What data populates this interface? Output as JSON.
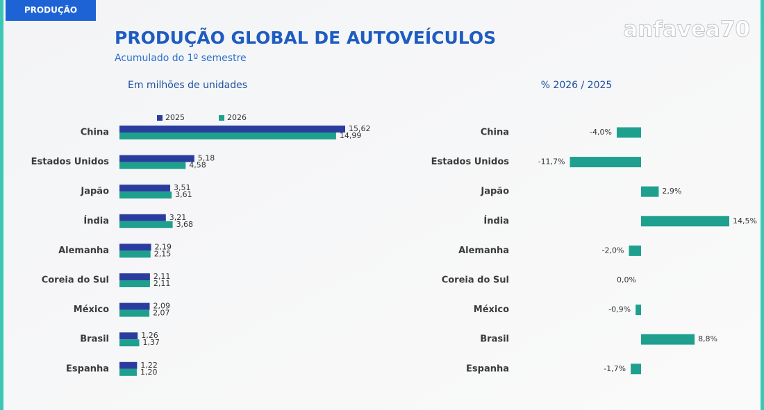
{
  "header": {
    "tag": "PRODUÇÃO",
    "title": "PRODUÇÃO GLOBAL DE AUTOVEÍCULOS",
    "subtitle": "Acumulado do 1º semestre",
    "logo": "anfavea70"
  },
  "chart_data": [
    {
      "type": "bar",
      "orientation": "horizontal",
      "title": "Em milhões de unidades",
      "legend": "top",
      "categories": [
        "China",
        "Estados Unidos",
        "Japão",
        "Índia",
        "Alemanha",
        "Coreia do Sul",
        "México",
        "Brasil",
        "Espanha"
      ],
      "series": [
        {
          "name": "2025",
          "color": "#2a3d9e",
          "values": [
            15.62,
            5.18,
            3.51,
            3.21,
            2.19,
            2.11,
            2.09,
            1.26,
            1.22
          ],
          "value_labels": [
            "15,62",
            "5,18",
            "3,51",
            "3,21",
            "2,19",
            "2,11",
            "2,09",
            "1,26",
            "1,22"
          ]
        },
        {
          "name": "2026",
          "color": "#1fa08e",
          "values": [
            14.99,
            4.58,
            3.61,
            3.68,
            2.15,
            2.11,
            2.07,
            1.37,
            1.2
          ],
          "value_labels": [
            "14,99",
            "4,58",
            "3,61",
            "3,68",
            "2,15",
            "2,11",
            "2,07",
            "1,37",
            "1,20"
          ]
        }
      ]
    },
    {
      "type": "bar",
      "orientation": "horizontal",
      "title": "% 2026 / 2025",
      "color": "#1fa08e",
      "categories": [
        "China",
        "Estados Unidos",
        "Japão",
        "Índia",
        "Alemanha",
        "Coreia do Sul",
        "México",
        "Brasil",
        "Espanha"
      ],
      "values": [
        -4.0,
        -11.7,
        2.9,
        14.5,
        -2.0,
        0.0,
        -0.9,
        8.8,
        -1.7
      ],
      "value_labels": [
        "-4,0%",
        "-11,7%",
        "2,9%",
        "14,5%",
        "-2,0%",
        "0,0%",
        "-0,9%",
        "8,8%",
        "-1,7%"
      ]
    }
  ]
}
